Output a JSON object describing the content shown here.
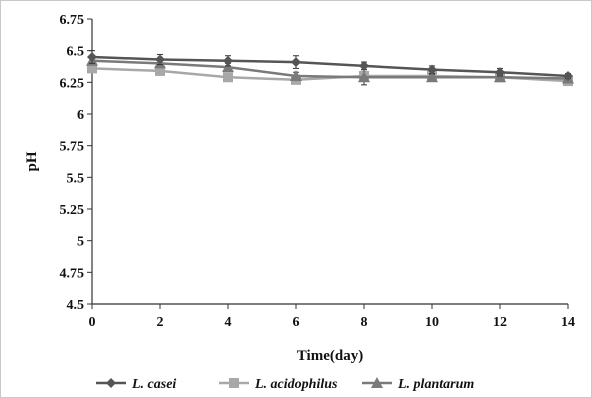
{
  "chart_data": {
    "type": "line",
    "title": "",
    "xlabel": "Time(day)",
    "ylabel": "pH",
    "x": [
      0,
      2,
      4,
      6,
      8,
      10,
      12,
      14
    ],
    "xlim": [
      0,
      14
    ],
    "ylim": [
      4.5,
      6.75
    ],
    "x_ticks": [
      "0",
      "2",
      "4",
      "6",
      "8",
      "10",
      "12",
      "14"
    ],
    "y_ticks": [
      "4.5",
      "4.75",
      "5",
      "5.25",
      "5.5",
      "5.75",
      "6",
      "6.25",
      "6.5",
      "6.75"
    ],
    "grid": false,
    "legend_position": "bottom",
    "series": [
      {
        "name": "L. casei",
        "marker": "diamond",
        "color": "#555555",
        "values": [
          6.45,
          6.43,
          6.42,
          6.41,
          6.38,
          6.35,
          6.33,
          6.3
        ],
        "errors": [
          0.05,
          0.04,
          0.04,
          0.05,
          0.03,
          0.03,
          0.03,
          0.02
        ]
      },
      {
        "name": "L. acidophilus",
        "marker": "square",
        "color": "#a8a8a8",
        "values": [
          6.36,
          6.34,
          6.29,
          6.27,
          6.3,
          6.3,
          6.29,
          6.26
        ],
        "errors": [
          0.03,
          0.03,
          0.02,
          0.03,
          0.03,
          0.03,
          0.02,
          0.02
        ]
      },
      {
        "name": "L. plantarum",
        "marker": "triangle",
        "color": "#7a7a7a",
        "values": [
          6.42,
          6.4,
          6.37,
          6.3,
          6.29,
          6.29,
          6.29,
          6.28
        ],
        "errors": [
          0.03,
          0.03,
          0.03,
          0.03,
          0.06,
          0.02,
          0.02,
          0.02
        ]
      }
    ]
  }
}
